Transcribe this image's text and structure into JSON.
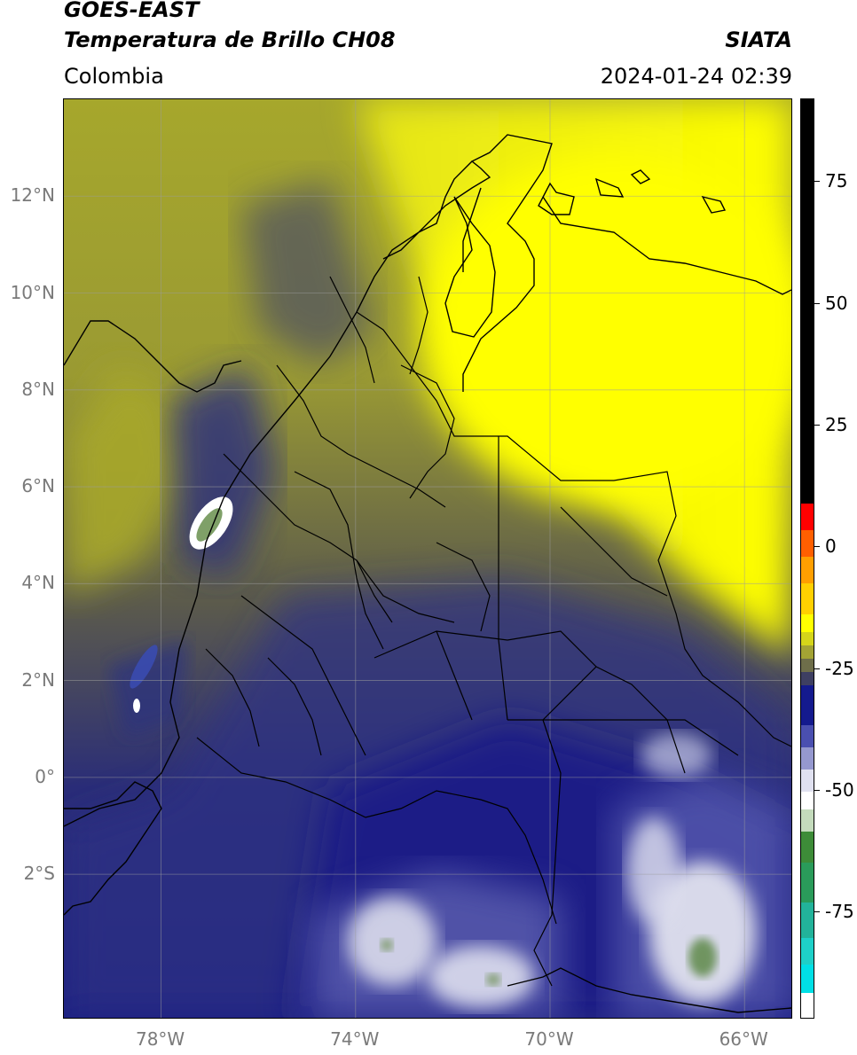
{
  "header": {
    "satellite": "GOES-EAST",
    "product": "Temperatura de Brillo CH08",
    "region": "Colombia",
    "org": "SIATA",
    "datetime": "2024-01-24 02:39"
  },
  "map": {
    "extent": {
      "lon_min": -80,
      "lon_max": -65,
      "lat_min": -5,
      "lat_max": 14
    },
    "lat_ticks": [
      {
        "value": 12,
        "label": "12°N"
      },
      {
        "value": 10,
        "label": "10°N"
      },
      {
        "value": 8,
        "label": "8°N"
      },
      {
        "value": 6,
        "label": "6°N"
      },
      {
        "value": 4,
        "label": "4°N"
      },
      {
        "value": 2,
        "label": "2°N"
      },
      {
        "value": 0,
        "label": "0°"
      },
      {
        "value": -2,
        "label": "2°S"
      }
    ],
    "lon_ticks": [
      {
        "value": -78,
        "label": "78°W"
      },
      {
        "value": -74,
        "label": "74°W"
      },
      {
        "value": -70,
        "label": "70°W"
      },
      {
        "value": -66,
        "label": "66°W"
      }
    ],
    "colors": {
      "warm": "#ffff00",
      "mid": "#6d6b3b",
      "cold": "#1c1f80",
      "coldest": "#f2f2f7",
      "grid": "#9c9c9c",
      "coast": "#000000"
    }
  },
  "colorbar": {
    "ticks": [
      {
        "value": 75,
        "label": "75"
      },
      {
        "value": 50,
        "label": "50"
      },
      {
        "value": 25,
        "label": "25"
      },
      {
        "value": 0,
        "label": "0"
      },
      {
        "value": -25,
        "label": "-25"
      },
      {
        "value": -50,
        "label": "-50"
      },
      {
        "value": -75,
        "label": "-75"
      }
    ],
    "range": [
      -97,
      92
    ]
  }
}
